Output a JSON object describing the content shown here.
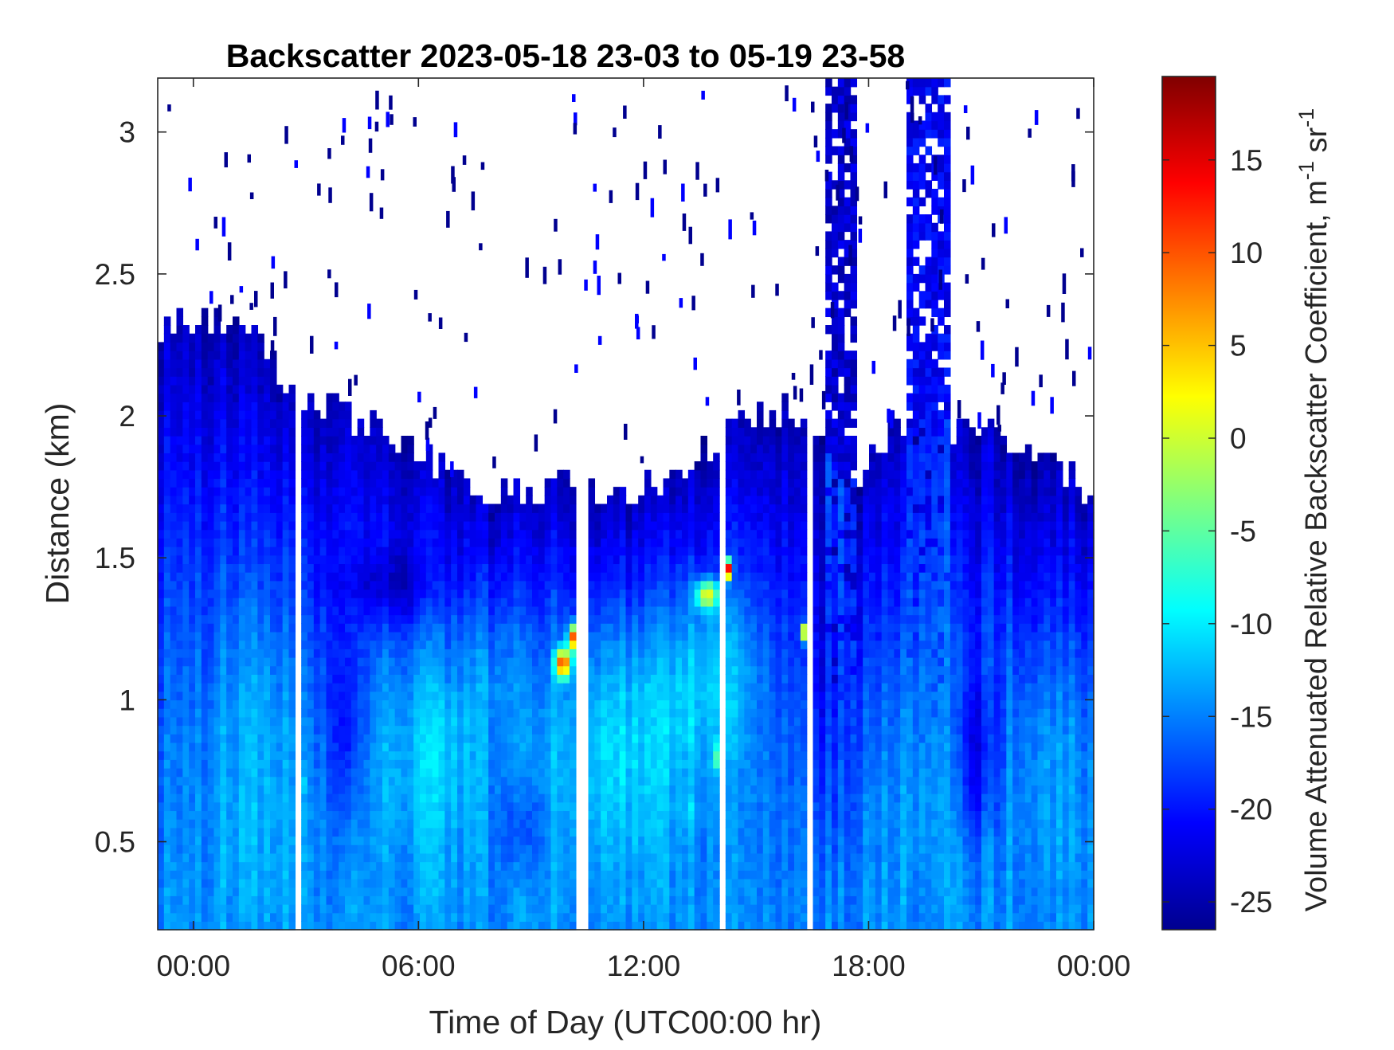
{
  "chart_data": {
    "type": "heatmap",
    "title": "Backscatter 2023-05-18 23-03 to 05-19 23-58",
    "xlabel": "Time of Day (UTC00:00 hr)",
    "ylabel": "Distance (km)",
    "colorbar_label": "Volume Attenuated Relative Backscatter Coefficient, m",
    "colorbar_unit_m_exp": "-1",
    "colorbar_unit_sr": " sr",
    "colorbar_unit_sr_exp": "-1",
    "xlim_hours": [
      -0.95,
      24.0
    ],
    "ylim_km": [
      0.19,
      3.19
    ],
    "x_ticks": [
      {
        "value": 0,
        "label": "00:00"
      },
      {
        "value": 6,
        "label": "06:00"
      },
      {
        "value": 12,
        "label": "12:00"
      },
      {
        "value": 18,
        "label": "18:00"
      },
      {
        "value": 24,
        "label": "00:00"
      }
    ],
    "y_ticks": [
      {
        "value": 0.5,
        "label": "0.5"
      },
      {
        "value": 1,
        "label": "1"
      },
      {
        "value": 1.5,
        "label": "1.5"
      },
      {
        "value": 2,
        "label": "2"
      },
      {
        "value": 2.5,
        "label": "2.5"
      },
      {
        "value": 3,
        "label": "3"
      }
    ],
    "colorbar_range": [
      -26.5,
      19.5
    ],
    "colorbar_ticks": [
      {
        "value": -25,
        "label": "-25"
      },
      {
        "value": -20,
        "label": "-20"
      },
      {
        "value": -15,
        "label": "-15"
      },
      {
        "value": -10,
        "label": "-10"
      },
      {
        "value": -5,
        "label": "-5"
      },
      {
        "value": 0,
        "label": "0"
      },
      {
        "value": 5,
        "label": "5"
      },
      {
        "value": 10,
        "label": "10"
      },
      {
        "value": 15,
        "label": "15"
      }
    ],
    "colormap": "jet",
    "colormap_stops": [
      "#00008f",
      "#0000ff",
      "#00ffff",
      "#ffff00",
      "#ff0000",
      "#800000"
    ],
    "grid": false,
    "layer_top_km": [
      {
        "t": -0.95,
        "h": 2.33
      },
      {
        "t": 1.2,
        "h": 2.35
      },
      {
        "t": 2.7,
        "h": 2.08
      },
      {
        "t": 4.5,
        "h": 1.98
      },
      {
        "t": 6.0,
        "h": 1.88
      },
      {
        "t": 7.3,
        "h": 1.73
      },
      {
        "t": 8.7,
        "h": 1.73
      },
      {
        "t": 10.0,
        "h": 1.77
      },
      {
        "t": 11.5,
        "h": 1.72
      },
      {
        "t": 12.8,
        "h": 1.78
      },
      {
        "t": 14.5,
        "h": 1.98
      },
      {
        "t": 15.8,
        "h": 2.03
      },
      {
        "t": 16.6,
        "h": 1.9
      },
      {
        "t": 17.5,
        "h": 1.78
      },
      {
        "t": 18.7,
        "h": 1.97
      },
      {
        "t": 20.5,
        "h": 1.95
      },
      {
        "t": 22.5,
        "h": 1.9
      },
      {
        "t": 24.0,
        "h": 1.72
      }
    ],
    "plumes": [
      {
        "t": 1.6,
        "h": 0.88,
        "sigma_t": 1.3,
        "sigma_h": 0.6,
        "v": -11.5
      },
      {
        "t": 6.3,
        "h": 0.88,
        "sigma_t": 1.7,
        "sigma_h": 0.42,
        "v": -9.5
      },
      {
        "t": 11.2,
        "h": 0.92,
        "sigma_t": 2.1,
        "sigma_h": 0.48,
        "v": -7.5
      },
      {
        "t": 13.8,
        "h": 1.12,
        "sigma_t": 1.3,
        "sigma_h": 0.35,
        "v": -8.5
      },
      {
        "t": 8.0,
        "h": 1.18,
        "sigma_t": 0.9,
        "sigma_h": 0.28,
        "v": -12.5
      },
      {
        "t": 19.5,
        "h": 0.75,
        "sigma_t": 1.1,
        "sigma_h": 0.5,
        "v": -13.5
      },
      {
        "t": 22.8,
        "h": 0.85,
        "sigma_t": 1.3,
        "sigma_h": 0.45,
        "v": -12.0
      }
    ],
    "dark_pockets": [
      {
        "t": 4.1,
        "h": 0.9,
        "sigma_t": 0.45,
        "sigma_h": 0.35,
        "v": -21.5
      },
      {
        "t": 5.2,
        "h": 1.4,
        "sigma_t": 1.2,
        "sigma_h": 0.12,
        "v": -20.0
      },
      {
        "t": 20.9,
        "h": 0.8,
        "sigma_t": 0.6,
        "sigma_h": 0.28,
        "v": -21.5
      },
      {
        "t": 17.0,
        "h": 1.0,
        "sigma_t": 0.5,
        "sigma_h": 0.6,
        "v": -19.5
      },
      {
        "t": 8.8,
        "h": 0.55,
        "sigma_t": 0.6,
        "sigma_h": 0.18,
        "v": -19.0
      }
    ],
    "hotspots": [
      {
        "t": 10.2,
        "h": 1.22,
        "sigma_t": 0.18,
        "sigma_h": 0.045,
        "v": 17.0
      },
      {
        "t": 9.85,
        "h": 1.13,
        "sigma_t": 0.2,
        "sigma_h": 0.05,
        "v": 12.5
      },
      {
        "t": 14.25,
        "h": 1.46,
        "sigma_t": 0.1,
        "sigma_h": 0.035,
        "v": 15.0
      },
      {
        "t": 13.7,
        "h": 1.37,
        "sigma_t": 0.3,
        "sigma_h": 0.05,
        "v": 2.0
      },
      {
        "t": 2.85,
        "h": 0.7,
        "sigma_t": 0.07,
        "sigma_h": 0.03,
        "v": 14.0
      },
      {
        "t": 16.25,
        "h": 1.24,
        "sigma_t": 0.06,
        "sigma_h": 0.03,
        "v": 6.0
      },
      {
        "t": 14.0,
        "h": 0.8,
        "sigma_t": 0.08,
        "sigma_h": 0.05,
        "v": 1.0
      },
      {
        "t": 13.2,
        "h": 0.62,
        "sigma_t": 0.06,
        "sigma_h": 0.04,
        "v": 1.0
      }
    ],
    "data_gaps_hours": [
      2.82,
      10.25,
      10.42,
      14.15,
      16.35
    ],
    "deep_columns": [
      {
        "t0": 16.8,
        "t1": 17.7,
        "v": -23.0
      },
      {
        "t0": 19.0,
        "t1": 20.1,
        "v": -21.0
      }
    ]
  }
}
